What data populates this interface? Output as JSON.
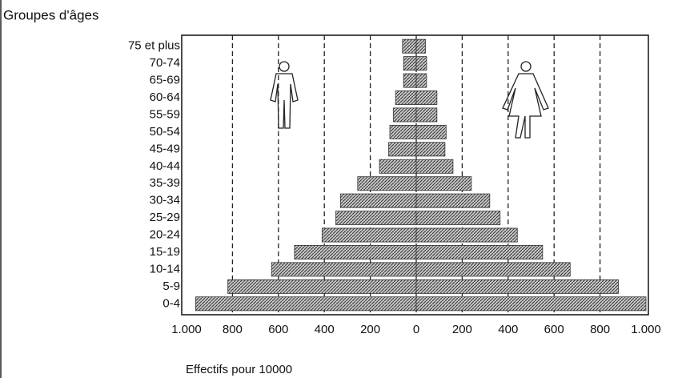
{
  "chart_data": {
    "type": "pyramid",
    "title": "Groupes d'âges",
    "x_label": "Effectifs pour 10000",
    "categories": [
      "75 et plus",
      "70-74",
      "65-69",
      "60-64",
      "55-59",
      "50-54",
      "45-49",
      "40-44",
      "35-39",
      "30-34",
      "25-29",
      "20-24",
      "15-19",
      "10-14",
      "5-9",
      "0-4"
    ],
    "series": [
      {
        "side": "left",
        "color": "#9a9a9a",
        "values": [
          60,
          55,
          55,
          90,
          100,
          115,
          120,
          160,
          255,
          330,
          350,
          410,
          530,
          630,
          820,
          960
        ]
      },
      {
        "side": "right",
        "color": "#9a9a9a",
        "values": [
          40,
          45,
          45,
          90,
          90,
          130,
          125,
          160,
          240,
          320,
          365,
          440,
          550,
          670,
          880,
          1000
        ]
      }
    ],
    "xlim": [
      -1000,
      1000
    ],
    "xticks": [
      {
        "value": -1000,
        "label": "1.000"
      },
      {
        "value": -800,
        "label": "800"
      },
      {
        "value": -600,
        "label": "600"
      },
      {
        "value": -400,
        "label": "400"
      },
      {
        "value": -200,
        "label": "200"
      },
      0,
      200,
      400,
      600,
      800,
      {
        "value": 1000,
        "label": "1.000"
      }
    ],
    "grid": true
  }
}
